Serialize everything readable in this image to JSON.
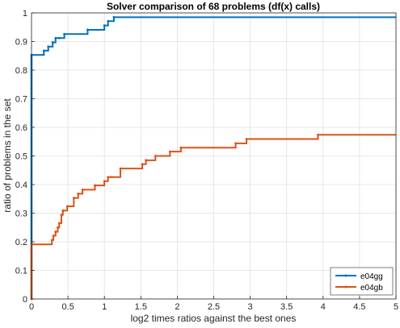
{
  "chart_data": {
    "type": "line",
    "title": "Solver comparison of 68 problems (df(x) calls)",
    "xlabel": "log2 times ratios against the best ones",
    "ylabel": "ratio of problems in the set",
    "xlim": [
      0,
      5
    ],
    "ylim": [
      0,
      1
    ],
    "x_ticks": [
      "0",
      "0.5",
      "1",
      "1.5",
      "2",
      "2.5",
      "3",
      "3.5",
      "4",
      "4.5",
      "5"
    ],
    "y_ticks": [
      "0",
      "0.1",
      "0.2",
      "0.3",
      "0.4",
      "0.5",
      "0.6",
      "0.7",
      "0.8",
      "0.9",
      "1"
    ],
    "grid": true,
    "legend_position": "bottom-right",
    "series": [
      {
        "name": "e04gg",
        "color": "#0072bd",
        "step": true,
        "x": [
          0,
          0.17,
          0.23,
          0.29,
          0.33,
          0.38,
          0.45,
          0.77,
          1.0,
          1.05,
          1.13,
          5
        ],
        "y": [
          0.853,
          0.868,
          0.882,
          0.897,
          0.912,
          0.912,
          0.926,
          0.941,
          0.956,
          0.971,
          0.985,
          0.985
        ]
      },
      {
        "name": "e04gb",
        "color": "#d95319",
        "step": true,
        "x": [
          0,
          0.28,
          0.3,
          0.33,
          0.36,
          0.38,
          0.41,
          0.43,
          0.49,
          0.58,
          0.64,
          0.7,
          0.87,
          1.0,
          1.05,
          1.1,
          1.22,
          1.52,
          1.57,
          1.7,
          1.9,
          2.05,
          2.8,
          2.95,
          3.93,
          5
        ],
        "y": [
          0.191,
          0.206,
          0.221,
          0.235,
          0.25,
          0.265,
          0.294,
          0.309,
          0.324,
          0.353,
          0.368,
          0.382,
          0.397,
          0.412,
          0.426,
          0.426,
          0.456,
          0.471,
          0.485,
          0.5,
          0.515,
          0.529,
          0.544,
          0.559,
          0.574,
          0.574
        ]
      }
    ]
  }
}
